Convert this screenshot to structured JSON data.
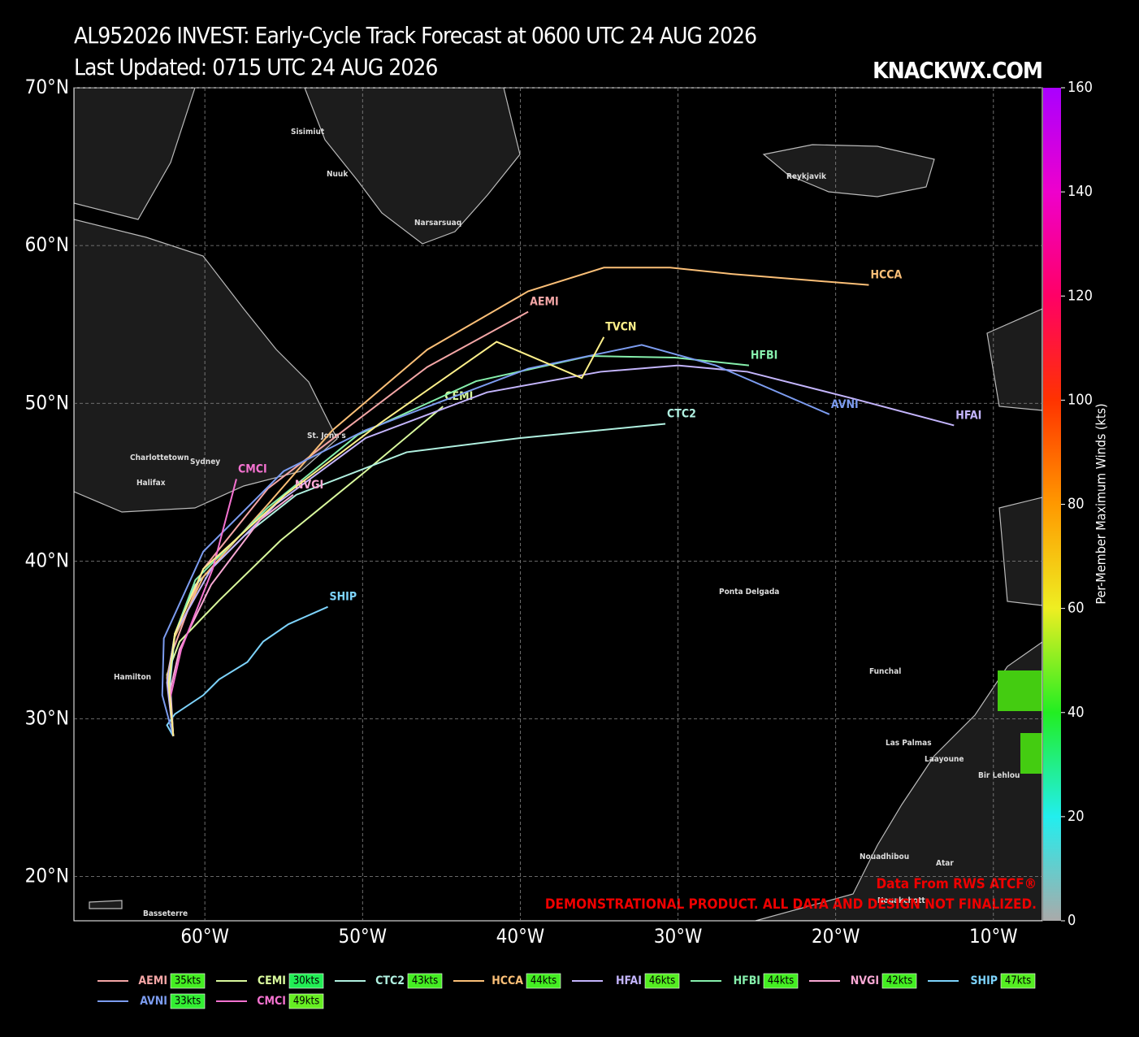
{
  "header": {
    "title": "AL952026 INVEST: Early-Cycle Track Forecast at 0600 UTC 24 AUG 2026",
    "subtitle": "Last Updated: 0715 UTC 24 AUG 2026",
    "brand": "KNACKWX.COM"
  },
  "map": {
    "xlim": [
      -68.3,
      -6.9
    ],
    "ylim": [
      17.2,
      70
    ],
    "grid": true,
    "xticks": [
      {
        "value": -60,
        "label": "60°W"
      },
      {
        "value": -50,
        "label": "50°W"
      },
      {
        "value": -40,
        "label": "40°W"
      },
      {
        "value": -30,
        "label": "30°W"
      },
      {
        "value": -20,
        "label": "20°W"
      },
      {
        "value": -10,
        "label": "10°W"
      }
    ],
    "yticks": [
      {
        "value": 20,
        "label": "20°N"
      },
      {
        "value": 30,
        "label": "30°N"
      },
      {
        "value": 40,
        "label": "40°N"
      },
      {
        "value": 50,
        "label": "50°N"
      },
      {
        "value": 60,
        "label": "60°N"
      },
      {
        "value": 70,
        "label": "70°N"
      }
    ],
    "places": [
      "Sisimiut",
      "Nuuk",
      "Narsarsuaq",
      "Reykjavik",
      "St. John's",
      "Charlottetown",
      "Sydney",
      "Halifax",
      "Hamilton",
      "Ponta Delgada",
      "Funchal",
      "Las Palmas",
      "Laayoune",
      "Bir Lehlou",
      "Nouadhibou",
      "Atar",
      "Nouakchott",
      "Basseterre"
    ],
    "tracks": [
      {
        "name": "AEMI",
        "color": "#f4a6a6",
        "lon": [
          -62,
          -62.3,
          -62,
          -60.1,
          -56,
          -51.3,
          -45.9,
          -39.5
        ],
        "lat": [
          28.9,
          31.8,
          34.4,
          39.5,
          44.6,
          48.2,
          52.3,
          55.8
        ]
      },
      {
        "name": "CEMI",
        "color": "#d9f99d",
        "lon": [
          -62,
          -62.4,
          -61.6,
          -59.1,
          -55.2,
          -49.8,
          -44.9
        ],
        "lat": [
          28.9,
          32.8,
          34.9,
          37.5,
          41.3,
          45.7,
          49.8
        ]
      },
      {
        "name": "CTC2",
        "color": "#b0f0e0",
        "lon": [
          -62,
          -62.2,
          -61.9,
          -60.6,
          -57.5,
          -54.2,
          -47.2,
          -40,
          -30.8
        ],
        "lat": [
          28.9,
          32.3,
          35.4,
          38.5,
          41.6,
          44.2,
          46.9,
          47.8,
          48.7
        ]
      },
      {
        "name": "HCCA",
        "color": "#fbbf77",
        "lon": [
          -62,
          -62.4,
          -61.9,
          -60.1,
          -56,
          -51.9,
          -45.9,
          -39.5,
          -34.7,
          -30.5,
          -26.6,
          -17.9
        ],
        "lat": [
          28.9,
          32.6,
          35.2,
          39,
          43.6,
          48.3,
          53.4,
          57.1,
          58.6,
          58.6,
          58.2,
          57.5
        ]
      },
      {
        "name": "HFAI",
        "color": "#c4b5fd",
        "lon": [
          -62,
          -62.4,
          -61.9,
          -59.6,
          -55.5,
          -49.8,
          -42.1,
          -34.9,
          -30,
          -25.6,
          -18.9,
          -12.5
        ],
        "lat": [
          28.9,
          32.3,
          35.4,
          39.5,
          43.6,
          47.8,
          50.7,
          52,
          52.4,
          52,
          50.3,
          48.6
        ]
      },
      {
        "name": "HFBI",
        "color": "#86efac",
        "lon": [
          -62,
          -62.3,
          -61.9,
          -60.6,
          -56,
          -50.3,
          -42.8,
          -35.6,
          -30.2,
          -25.5
        ],
        "lat": [
          28.9,
          32.3,
          35.4,
          38.8,
          43.4,
          48,
          51.4,
          53,
          52.9,
          52.4
        ]
      },
      {
        "name": "NVGI",
        "color": "#f9a8d4",
        "lon": [
          -62,
          -62.2,
          -61.6,
          -59.6,
          -56.5,
          -54.4
        ],
        "lat": [
          28.9,
          31.8,
          34.4,
          38.5,
          42.6,
          44.2
        ]
      },
      {
        "name": "SHIP",
        "color": "#7dd3fc",
        "lon": [
          -62,
          -62.4,
          -61.9,
          -60.1,
          -59.1,
          -57.3,
          -56.3,
          -54.7,
          -52.2
        ],
        "lat": [
          28.9,
          29.6,
          30.3,
          31.5,
          32.5,
          33.6,
          34.9,
          36,
          37.1
        ]
      },
      {
        "name": "AVNI",
        "color": "#7c9cf0",
        "lon": [
          -62,
          -62.7,
          -62.6,
          -60.1,
          -55,
          -49.8,
          -39.5,
          -32.3,
          -27.6,
          -20.4
        ],
        "lat": [
          28.9,
          31.5,
          35.1,
          40.6,
          45.7,
          48.3,
          52.2,
          53.7,
          52.4,
          49.3
        ]
      },
      {
        "name": "CMCI",
        "color": "#f472d0",
        "lon": [
          -62,
          -62.2,
          -61.5,
          -59.5,
          -58
        ],
        "lat": [
          28.9,
          31.3,
          34.4,
          39.5,
          45.2
        ]
      },
      {
        "name": "TVCN",
        "color": "#fef08a",
        "lon": [
          -62,
          -62.3,
          -61.9,
          -60.1,
          -54.9,
          -48.8,
          -41.5,
          -36.1,
          -34.7
        ],
        "lat": [
          28.9,
          32.3,
          35.4,
          39.5,
          44.2,
          48.8,
          53.9,
          51.6,
          54.2
        ]
      }
    ]
  },
  "colorbar": {
    "label": "Per-Member Maximum Winds (kts)",
    "lim": [
      0,
      160
    ],
    "ticks": [
      0,
      20,
      40,
      60,
      80,
      100,
      120,
      140,
      160
    ],
    "colors": [
      "#aaaaaa",
      "#22eeee",
      "#22ee22",
      "#eeee22",
      "#ff9900",
      "#ff3300",
      "#ff0066",
      "#ee00cc",
      "#aa00ff"
    ]
  },
  "legend": [
    {
      "name": "AEMI",
      "color": "#f4a6a6",
      "kts": "35kts",
      "badge": "#44ee22"
    },
    {
      "name": "CEMI",
      "color": "#d9f99d",
      "kts": "30kts",
      "badge": "#22ee55"
    },
    {
      "name": "CTC2",
      "color": "#b0f0e0",
      "kts": "43kts",
      "badge": "#44ee22"
    },
    {
      "name": "HCCA",
      "color": "#fbbf77",
      "kts": "44kts",
      "badge": "#44ee22"
    },
    {
      "name": "HFAI",
      "color": "#c4b5fd",
      "kts": "46kts",
      "badge": "#55ee22"
    },
    {
      "name": "HFBI",
      "color": "#86efac",
      "kts": "44kts",
      "badge": "#44ee22"
    },
    {
      "name": "NVGI",
      "color": "#f9a8d4",
      "kts": "42kts",
      "badge": "#44ee22"
    },
    {
      "name": "SHIP",
      "color": "#7dd3fc",
      "kts": "47kts",
      "badge": "#55ee22"
    },
    {
      "name": "AVNI",
      "color": "#7c9cf0",
      "kts": "33kts",
      "badge": "#33ee33"
    },
    {
      "name": "CMCI",
      "color": "#f472d0",
      "kts": "49kts",
      "badge": "#66ee22"
    }
  ],
  "footer": {
    "source": "Data From RWS ATCF®",
    "disclaimer": "DEMONSTRATIONAL PRODUCT. ALL DATA AND DESIGN NOT FINALIZED."
  }
}
